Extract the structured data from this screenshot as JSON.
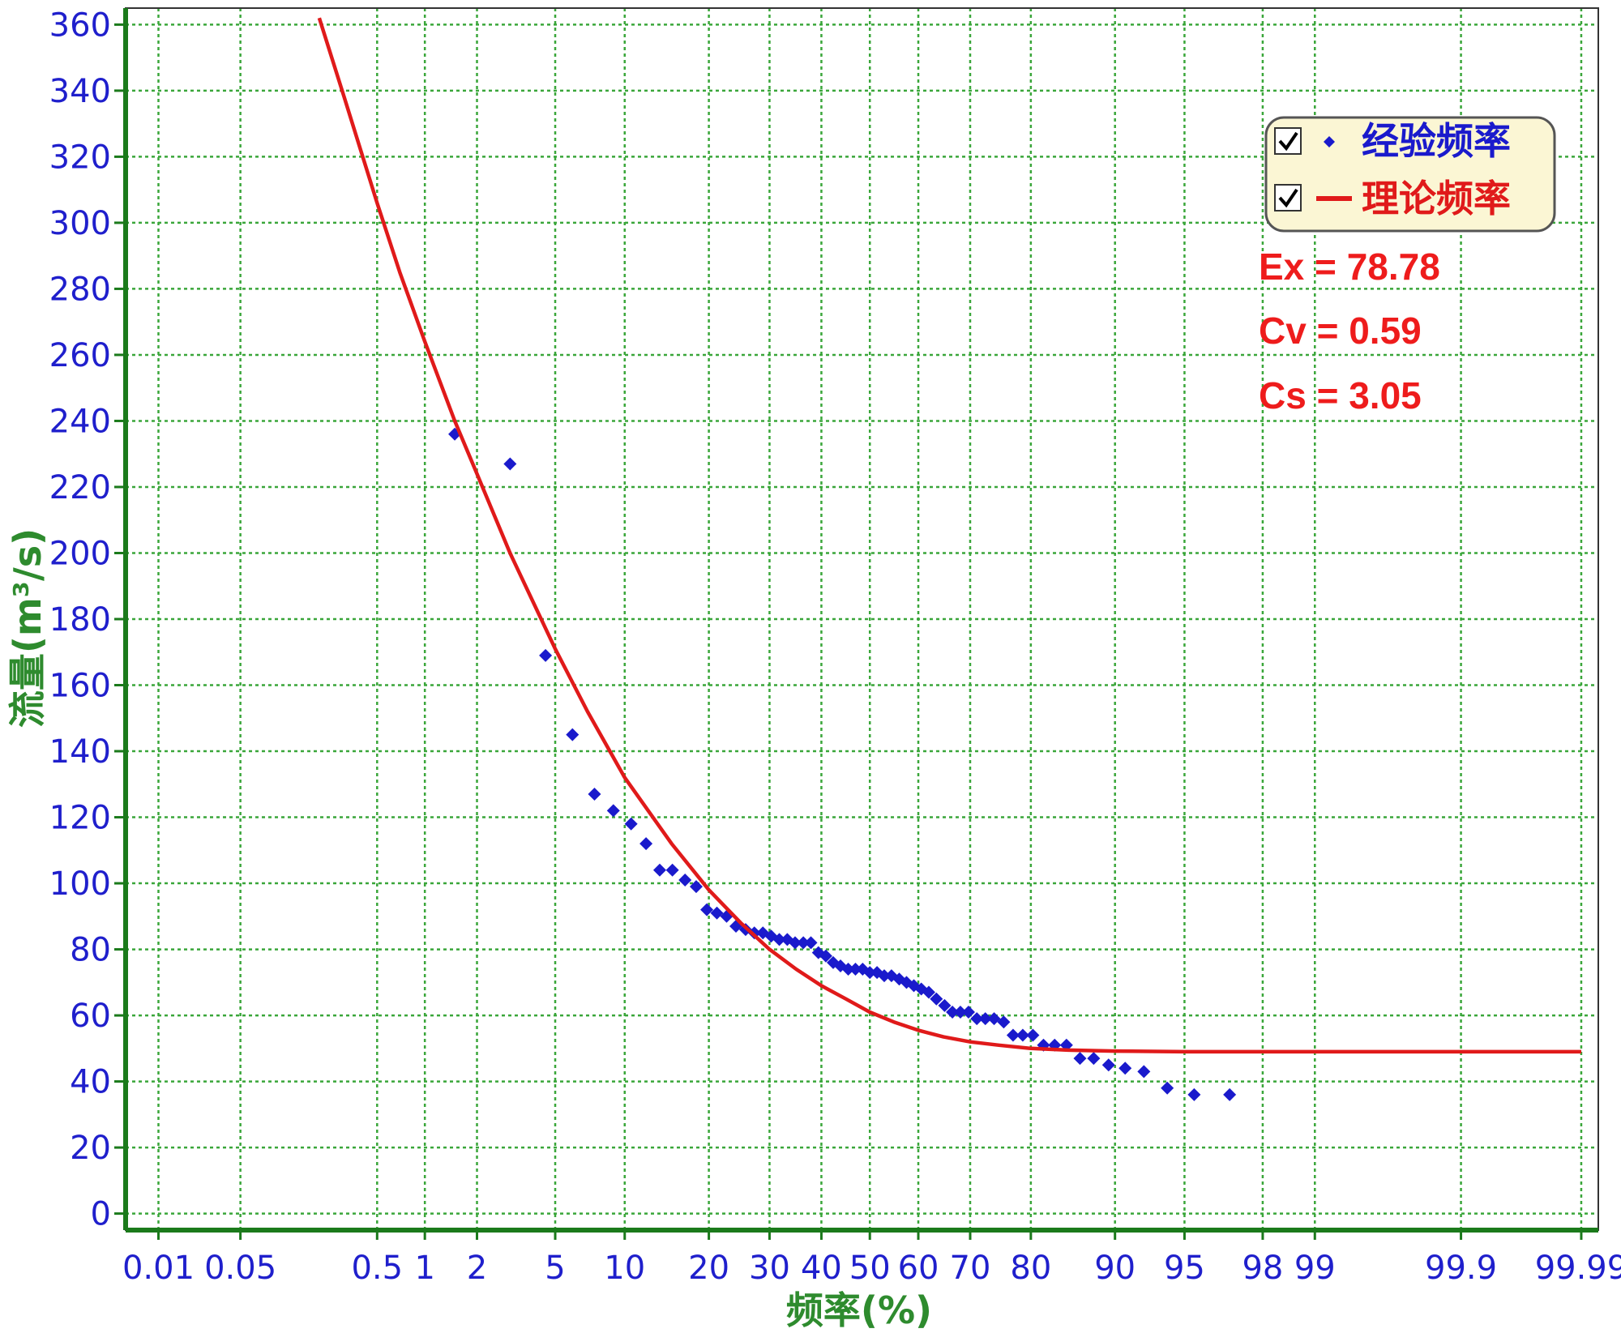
{
  "colors": {
    "background": "#ffffff",
    "axis": "#1b7a1b",
    "grid": "#3aa63a",
    "tick_text": "#1f1fcc",
    "axis_title": "#2e8b2e",
    "empirical": "#1a1acc",
    "theoretical": "#e01a1a",
    "legend_bg": "#fbf6d4"
  },
  "legend": {
    "items": [
      {
        "label": "经验频率",
        "checked": true,
        "marker": "diamond",
        "color": "#1a1acc"
      },
      {
        "label": "理论频率",
        "checked": true,
        "marker": "line",
        "color": "#e01a1a"
      }
    ]
  },
  "stats": {
    "ex": "Ex = 78.78",
    "cv": "Cv = 0.59",
    "cs": "Cs = 3.05"
  },
  "chart_data": {
    "type": "scatter",
    "x_scale": "normal-probability",
    "xlabel": "频率(%)",
    "ylabel": "流量(m³/s)",
    "ylim": [
      -5,
      365
    ],
    "xlim": [
      0.005,
      99.993
    ],
    "grid": true,
    "legend_position": "top-right",
    "x_ticks": [
      {
        "label": "0.01",
        "value": 0.01
      },
      {
        "label": "0.05",
        "value": 0.05
      },
      {
        "label": "0.5",
        "value": 0.5
      },
      {
        "label": "1",
        "value": 1
      },
      {
        "label": "2",
        "value": 2
      },
      {
        "label": "5",
        "value": 5
      },
      {
        "label": "10",
        "value": 10
      },
      {
        "label": "20",
        "value": 20
      },
      {
        "label": "30",
        "value": 30
      },
      {
        "label": "40",
        "value": 40
      },
      {
        "label": "50",
        "value": 50
      },
      {
        "label": "60",
        "value": 60
      },
      {
        "label": "70",
        "value": 70
      },
      {
        "label": "80",
        "value": 80
      },
      {
        "label": "90",
        "value": 90
      },
      {
        "label": "95",
        "value": 95
      },
      {
        "label": "98",
        "value": 98
      },
      {
        "label": "99",
        "value": 99
      },
      {
        "label": "99.9",
        "value": 99.9
      },
      {
        "label": "99.99",
        "value": 99.99
      }
    ],
    "y_ticks": [
      0,
      20,
      40,
      60,
      80,
      100,
      120,
      140,
      160,
      180,
      200,
      220,
      240,
      260,
      280,
      300,
      320,
      340,
      360
    ],
    "series": [
      {
        "name": "经验频率",
        "kind": "scatter",
        "color": "#1a1acc",
        "points": [
          [
            1.5,
            236
          ],
          [
            3.0,
            227
          ],
          [
            4.5,
            169
          ],
          [
            6.0,
            145
          ],
          [
            7.5,
            127
          ],
          [
            9.0,
            122
          ],
          [
            10.6,
            118
          ],
          [
            12.1,
            112
          ],
          [
            13.6,
            104
          ],
          [
            15.1,
            104
          ],
          [
            16.7,
            101
          ],
          [
            18.2,
            99
          ],
          [
            19.7,
            92
          ],
          [
            21.2,
            91
          ],
          [
            22.7,
            90
          ],
          [
            24.2,
            87
          ],
          [
            25.8,
            86
          ],
          [
            27.3,
            85
          ],
          [
            28.8,
            85
          ],
          [
            30.3,
            84
          ],
          [
            31.8,
            83
          ],
          [
            33.3,
            83
          ],
          [
            34.8,
            82
          ],
          [
            36.4,
            82
          ],
          [
            37.9,
            82
          ],
          [
            39.4,
            79
          ],
          [
            40.9,
            78
          ],
          [
            42.4,
            76
          ],
          [
            43.9,
            75
          ],
          [
            45.5,
            74
          ],
          [
            47.0,
            74
          ],
          [
            48.5,
            74
          ],
          [
            50.0,
            73
          ],
          [
            51.5,
            73
          ],
          [
            53.0,
            72
          ],
          [
            54.5,
            72
          ],
          [
            56.1,
            71
          ],
          [
            57.6,
            70
          ],
          [
            59.1,
            69
          ],
          [
            60.6,
            68
          ],
          [
            62.1,
            67
          ],
          [
            63.6,
            65
          ],
          [
            65.2,
            63
          ],
          [
            66.7,
            61
          ],
          [
            68.2,
            61
          ],
          [
            69.7,
            61
          ],
          [
            71.2,
            59
          ],
          [
            72.7,
            59
          ],
          [
            74.2,
            59
          ],
          [
            75.8,
            58
          ],
          [
            77.3,
            54
          ],
          [
            78.8,
            54
          ],
          [
            80.3,
            54
          ],
          [
            81.8,
            51
          ],
          [
            83.3,
            51
          ],
          [
            84.8,
            51
          ],
          [
            86.4,
            47
          ],
          [
            87.9,
            47
          ],
          [
            89.4,
            45
          ],
          [
            90.9,
            44
          ],
          [
            92.4,
            43
          ],
          [
            94.0,
            38
          ],
          [
            95.5,
            36
          ],
          [
            97.0,
            36
          ]
        ]
      },
      {
        "name": "理论频率",
        "kind": "line",
        "color": "#e01a1a",
        "points": [
          [
            0.2,
            362
          ],
          [
            0.3,
            338
          ],
          [
            0.5,
            306
          ],
          [
            0.7,
            285
          ],
          [
            1,
            264
          ],
          [
            1.5,
            240
          ],
          [
            2,
            224
          ],
          [
            3,
            200
          ],
          [
            5,
            171
          ],
          [
            7,
            152
          ],
          [
            10,
            132
          ],
          [
            15,
            112
          ],
          [
            20,
            98
          ],
          [
            25,
            88
          ],
          [
            30,
            80
          ],
          [
            35,
            74
          ],
          [
            40,
            69
          ],
          [
            45,
            65
          ],
          [
            50,
            61
          ],
          [
            55,
            58
          ],
          [
            60,
            55.5
          ],
          [
            65,
            53.5
          ],
          [
            70,
            52
          ],
          [
            75,
            51
          ],
          [
            80,
            50
          ],
          [
            85,
            49.5
          ],
          [
            90,
            49.2
          ],
          [
            95,
            49
          ],
          [
            99,
            49
          ],
          [
            99.99,
            49
          ]
        ]
      }
    ]
  }
}
